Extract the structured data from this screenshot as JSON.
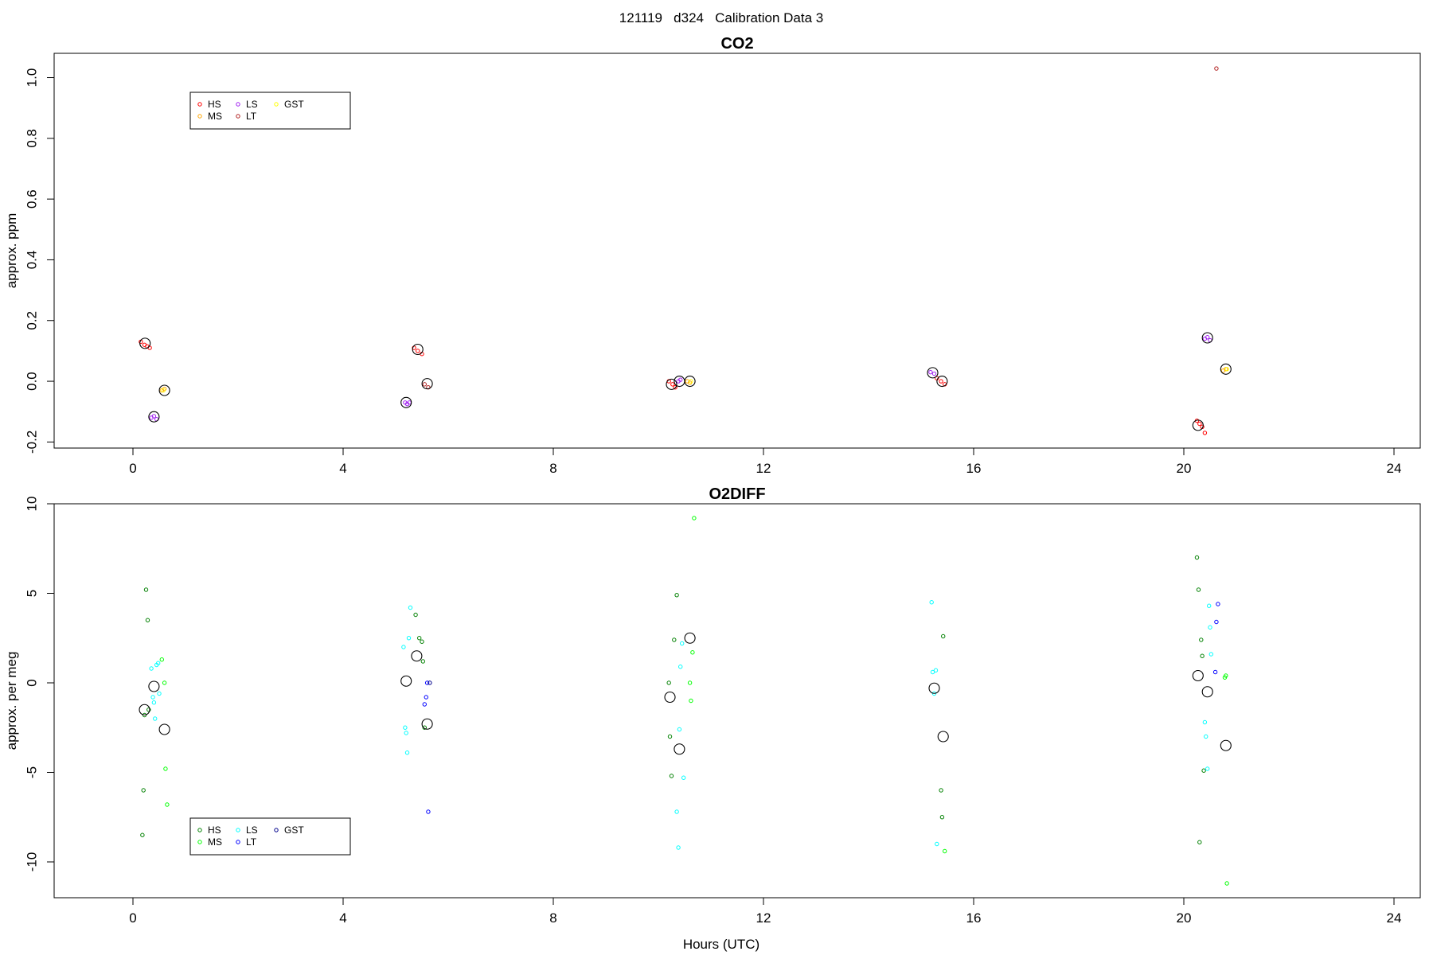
{
  "page": {
    "title": "121119   d324   Calibration Data 3",
    "xlabel": "Hours (UTC)"
  },
  "chart_data": [
    {
      "type": "scatter",
      "title": "CO2",
      "xlabel": "",
      "ylabel": "approx. ppm",
      "xlim": [
        -1.5,
        24.5
      ],
      "ylim": [
        -0.22,
        1.08
      ],
      "xticks": [
        0,
        4,
        8,
        12,
        16,
        20,
        24
      ],
      "yticks": [
        -0.2,
        0.0,
        0.2,
        0.4,
        0.6,
        0.8,
        1.0
      ],
      "ytick_labels": [
        "-0.2",
        "0.0",
        "0.2",
        "0.4",
        "0.6",
        "0.8",
        "1.0"
      ],
      "legend": {
        "position": "top-left",
        "entries": [
          "HS",
          "MS",
          "LS",
          "LT",
          "GST"
        ]
      },
      "series": [
        {
          "name": "HS",
          "color": "#ff0000",
          "x": [
            0.15,
            0.22,
            0.27,
            0.32,
            5.35,
            5.42,
            5.5,
            10.2,
            10.27,
            10.32,
            15.3,
            15.38,
            15.45,
            20.25,
            20.3,
            20.35,
            20.4
          ],
          "y": [
            0.13,
            0.12,
            0.115,
            0.11,
            0.11,
            0.1,
            0.09,
            0.0,
            -0.01,
            -0.02,
            0.01,
            0.0,
            -0.01,
            -0.13,
            -0.14,
            -0.15,
            -0.17
          ]
        },
        {
          "name": "MS",
          "color": "#ffa500",
          "x": [
            0.55,
            0.6,
            10.55,
            10.6,
            20.75,
            20.8
          ],
          "y": [
            -0.03,
            -0.025,
            0.0,
            -0.005,
            0.035,
            0.04
          ]
        },
        {
          "name": "LS",
          "color": "#a020f0",
          "x": [
            0.35,
            0.4,
            0.45,
            5.18,
            5.22,
            5.26,
            10.38,
            10.42,
            15.18,
            15.25,
            20.4,
            20.45,
            20.5
          ],
          "y": [
            -0.12,
            -0.115,
            -0.125,
            -0.07,
            -0.075,
            -0.07,
            0.0,
            0.005,
            0.03,
            0.025,
            0.14,
            0.145,
            0.135
          ]
        },
        {
          "name": "LT",
          "color": "#b22222",
          "x": [
            5.55,
            5.62,
            20.62
          ],
          "y": [
            -0.01,
            -0.02,
            1.03
          ]
        },
        {
          "name": "GST",
          "color": "#ffff00",
          "x": [
            0.58,
            10.62,
            20.82
          ],
          "y": [
            -0.03,
            0.0,
            0.04
          ]
        },
        {
          "name": "",
          "color": "#000000",
          "role": "mean",
          "x": [
            0.23,
            0.4,
            0.6,
            5.2,
            5.42,
            5.6,
            10.25,
            10.4,
            10.6,
            15.22,
            15.4,
            20.27,
            20.45,
            20.8
          ],
          "y": [
            0.125,
            -0.117,
            -0.03,
            -0.07,
            0.105,
            -0.008,
            -0.01,
            0.0,
            0.0,
            0.028,
            0.0,
            -0.145,
            0.143,
            0.04
          ]
        }
      ]
    },
    {
      "type": "scatter",
      "title": "O2DIFF",
      "xlabel": "Hours (UTC)",
      "ylabel": "approx. per meg",
      "xlim": [
        -1.5,
        24.5
      ],
      "ylim": [
        -12,
        10
      ],
      "xticks": [
        0,
        4,
        8,
        12,
        16,
        20,
        24
      ],
      "yticks": [
        -10,
        -5,
        0,
        5,
        10
      ],
      "ytick_labels": [
        "-10",
        "-5",
        "0",
        "5",
        "10"
      ],
      "legend": {
        "position": "bottom-left",
        "entries": [
          "HS",
          "MS",
          "LS",
          "LT",
          "GST"
        ]
      },
      "series": [
        {
          "name": "HS",
          "color": "#008000",
          "x": [
            0.18,
            0.2,
            0.22,
            0.25,
            0.28,
            0.3,
            5.38,
            5.45,
            5.5,
            5.52,
            5.55,
            10.2,
            10.22,
            10.25,
            10.3,
            10.35,
            15.38,
            15.4,
            15.42,
            20.25,
            20.28,
            20.3,
            20.33,
            20.35,
            20.38
          ],
          "y": [
            -8.5,
            -6.0,
            -1.8,
            5.2,
            3.5,
            -1.5,
            3.8,
            2.5,
            2.3,
            1.2,
            -2.5,
            0.0,
            -3.0,
            -5.2,
            2.4,
            4.9,
            -6.0,
            -7.5,
            2.6,
            7.0,
            5.2,
            -8.9,
            2.4,
            1.5,
            -4.9
          ]
        },
        {
          "name": "MS",
          "color": "#00ff00",
          "x": [
            0.55,
            0.6,
            0.62,
            0.65,
            10.6,
            10.62,
            10.65,
            10.68,
            15.45,
            20.78,
            20.8,
            20.82
          ],
          "y": [
            1.3,
            0.0,
            -4.8,
            -6.8,
            0.0,
            -1.0,
            1.7,
            9.2,
            -9.4,
            0.3,
            0.4,
            -11.2
          ]
        },
        {
          "name": "LS",
          "color": "#00ffff",
          "x": [
            0.35,
            0.38,
            0.4,
            0.42,
            0.45,
            0.48,
            0.5,
            5.15,
            5.18,
            5.2,
            5.22,
            5.25,
            5.28,
            10.35,
            10.38,
            10.4,
            10.42,
            10.45,
            10.48,
            15.2,
            15.22,
            15.25,
            15.28,
            15.3,
            20.4,
            20.42,
            20.45,
            20.48,
            20.5,
            20.52
          ],
          "y": [
            0.8,
            -0.8,
            -1.1,
            -2.0,
            1.0,
            1.1,
            -0.6,
            2.0,
            -2.5,
            -2.8,
            -3.9,
            2.5,
            4.2,
            -7.2,
            -9.2,
            -2.6,
            0.9,
            2.2,
            -5.3,
            4.5,
            0.6,
            -0.6,
            0.7,
            -9.0,
            -2.2,
            -3.0,
            -4.8,
            4.3,
            3.1,
            1.6
          ]
        },
        {
          "name": "LT",
          "color": "#0000ff",
          "x": [
            5.55,
            5.58,
            5.6,
            5.62,
            20.6,
            20.62,
            20.65
          ],
          "y": [
            -1.2,
            -0.8,
            0.0,
            -7.2,
            0.6,
            3.4,
            4.4
          ]
        },
        {
          "name": "GST",
          "color": "#00008b",
          "x": [
            5.65
          ],
          "y": [
            0.0
          ]
        },
        {
          "name": "",
          "color": "#000000",
          "role": "mean",
          "x": [
            0.22,
            0.4,
            0.6,
            5.2,
            5.4,
            5.6,
            10.22,
            10.4,
            10.6,
            15.25,
            15.42,
            20.27,
            20.45,
            20.8
          ],
          "y": [
            -1.5,
            -0.2,
            -2.6,
            0.1,
            1.5,
            -2.3,
            -0.8,
            -3.7,
            2.5,
            -0.3,
            -3.0,
            0.4,
            -0.5,
            -3.5
          ]
        }
      ]
    }
  ]
}
